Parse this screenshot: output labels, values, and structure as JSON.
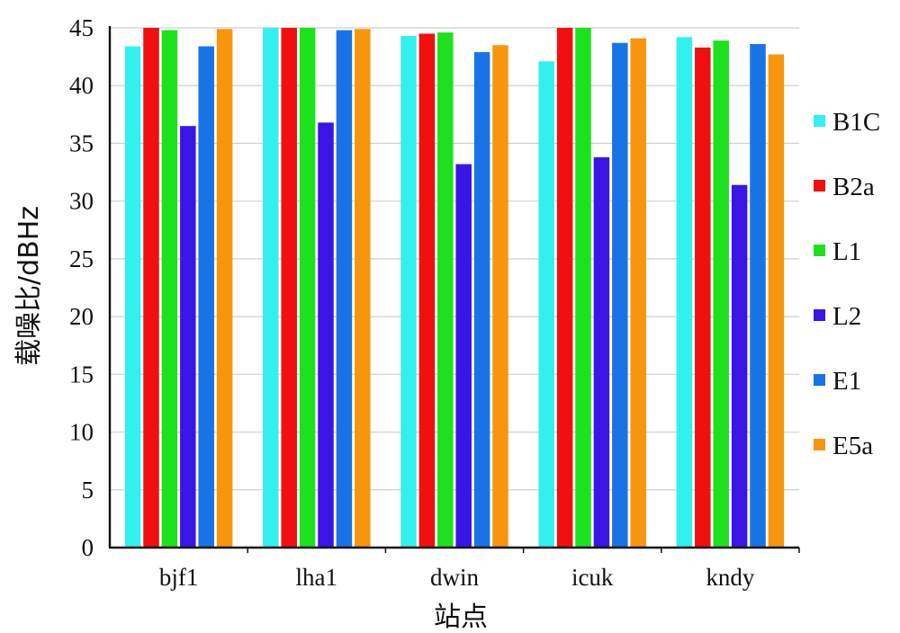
{
  "chart_data": {
    "type": "bar",
    "xlabel": "站点",
    "ylabel": "载噪比/dBHz",
    "categories": [
      "bjf1",
      "lha1",
      "dwin",
      "icuk",
      "kndy"
    ],
    "ylim": [
      0,
      45
    ],
    "yticks": [
      0,
      5,
      10,
      15,
      20,
      25,
      30,
      35,
      40,
      45
    ],
    "grid": true,
    "legend_position": "right",
    "series": [
      {
        "name": "B1C",
        "color": "#33f0f0",
        "values": [
          43.4,
          45.0,
          44.3,
          42.1,
          44.2
        ]
      },
      {
        "name": "B2a",
        "color": "#f20f0f",
        "values": [
          45.0,
          45.0,
          44.5,
          45.0,
          43.3
        ]
      },
      {
        "name": "L1",
        "color": "#1ee11e",
        "values": [
          44.8,
          45.0,
          44.6,
          45.0,
          43.9
        ]
      },
      {
        "name": "L2",
        "color": "#3b14e6",
        "values": [
          36.5,
          36.8,
          33.2,
          33.8,
          31.4
        ]
      },
      {
        "name": "E1",
        "color": "#1a73e6",
        "values": [
          43.4,
          44.8,
          42.9,
          43.7,
          43.6
        ]
      },
      {
        "name": "E5a",
        "color": "#f7960d",
        "values": [
          44.9,
          44.9,
          43.5,
          44.1,
          42.7
        ]
      }
    ]
  }
}
